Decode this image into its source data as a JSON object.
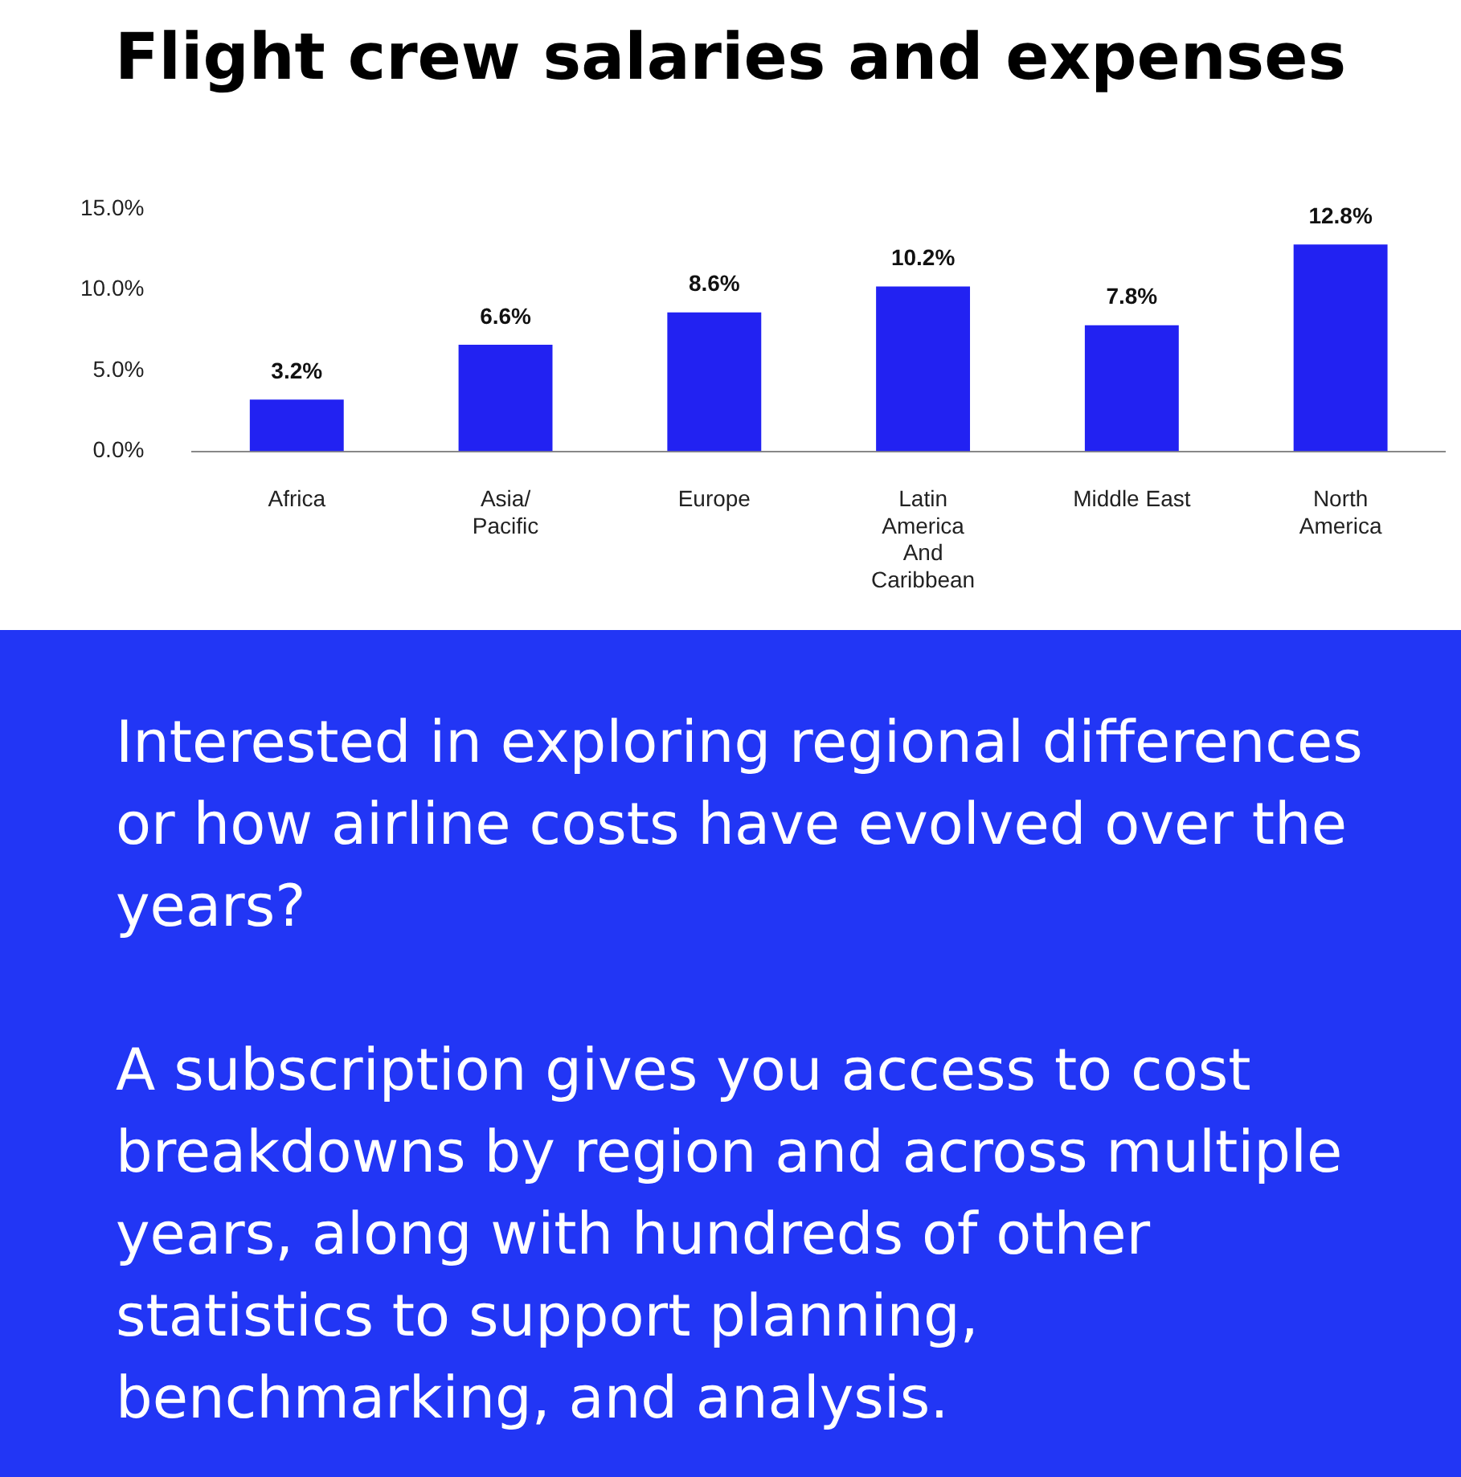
{
  "chart_data": {
    "type": "bar",
    "title": "Flight crew salaries and expenses",
    "categories": [
      "Africa",
      "Asia/\nPacific",
      "Europe",
      "Latin\nAmerica\nAnd\nCaribbean",
      "Middle East",
      "North\nAmerica"
    ],
    "values": [
      3.2,
      6.6,
      8.6,
      10.2,
      7.8,
      12.8
    ],
    "value_labels": [
      "3.2%",
      "6.6%",
      "8.6%",
      "10.2%",
      "7.8%",
      "12.8%"
    ],
    "color": "#2222f2",
    "ylim": [
      0,
      15
    ],
    "yticks": [
      {
        "value": 0,
        "label": "0.0%"
      },
      {
        "value": 5,
        "label": "5.0%"
      },
      {
        "value": 10,
        "label": "10.0%"
      },
      {
        "value": 15,
        "label": "15.0%"
      }
    ],
    "grid": false,
    "legend": false,
    "annotations": [
      "Interested in exploring regional differences or how airline costs have evolved over the years?",
      "A subscription gives you access to cost breakdowns by region and across multiple years, along with hundreds of other statistics to support planning, benchmarking, and analysis."
    ]
  }
}
